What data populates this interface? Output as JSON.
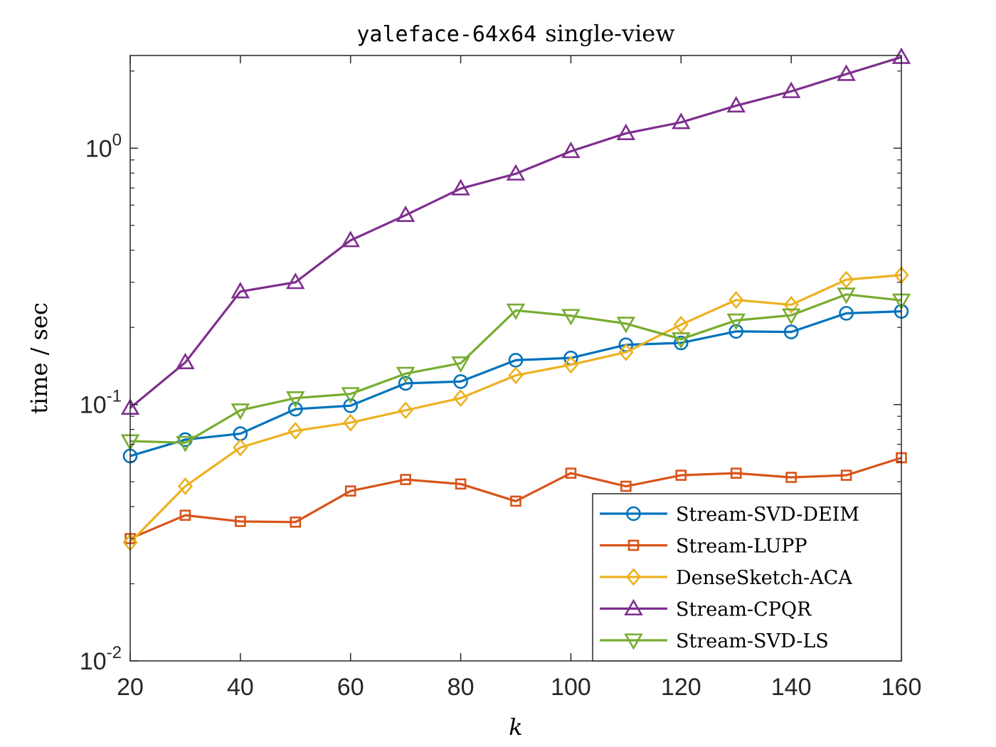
{
  "chart_data": {
    "type": "line",
    "title_mono": "yaleface-64x64",
    "title_rest": "single-view",
    "xlabel": "k",
    "ylabel": "time / sec",
    "xlim": [
      20,
      160
    ],
    "ylim": [
      0.01,
      2.3
    ],
    "yscale": "log",
    "x": [
      20,
      30,
      40,
      50,
      60,
      70,
      80,
      90,
      100,
      110,
      120,
      130,
      140,
      150,
      160
    ],
    "xticks": [
      20,
      40,
      60,
      80,
      100,
      120,
      140,
      160
    ],
    "xtick_labels": [
      "20",
      "40",
      "60",
      "80",
      "100",
      "120",
      "140",
      "160"
    ],
    "yticks": [
      0.01,
      0.1,
      1
    ],
    "ytick_labels": [
      {
        "base": "10",
        "exp": "-2"
      },
      {
        "base": "10",
        "exp": "-1"
      },
      {
        "base": "10",
        "exp": "0"
      }
    ],
    "grid": false,
    "legend_position": "bottom-right",
    "series": [
      {
        "name": "Stream-SVD-DEIM",
        "color": "#0072BD",
        "marker": "circle",
        "values": [
          0.063,
          0.073,
          0.077,
          0.096,
          0.099,
          0.121,
          0.123,
          0.149,
          0.152,
          0.171,
          0.174,
          0.193,
          0.192,
          0.227,
          0.231
        ]
      },
      {
        "name": "Stream-LUPP",
        "color": "#D95319",
        "marker": "square",
        "values": [
          0.03,
          0.037,
          0.035,
          0.0348,
          0.046,
          0.051,
          0.049,
          0.042,
          0.054,
          0.048,
          0.053,
          0.054,
          0.052,
          0.053,
          0.062
        ]
      },
      {
        "name": "DenseSketch-ACA",
        "color": "#EDB120",
        "marker": "diamond",
        "values": [
          0.029,
          0.048,
          0.068,
          0.079,
          0.085,
          0.095,
          0.106,
          0.13,
          0.143,
          0.16,
          0.205,
          0.256,
          0.245,
          0.307,
          0.32
        ]
      },
      {
        "name": "Stream-CPQR",
        "color": "#7E2F8E",
        "marker": "triangle-up",
        "values": [
          0.097,
          0.146,
          0.276,
          0.3,
          0.437,
          0.548,
          0.696,
          0.795,
          0.973,
          1.143,
          1.262,
          1.465,
          1.667,
          1.946,
          2.266
        ]
      },
      {
        "name": "Stream-SVD-LS",
        "color": "#77AC30",
        "marker": "triangle-down",
        "values": [
          0.072,
          0.071,
          0.095,
          0.106,
          0.11,
          0.132,
          0.145,
          0.233,
          0.222,
          0.207,
          0.18,
          0.213,
          0.223,
          0.269,
          0.255
        ]
      }
    ]
  }
}
